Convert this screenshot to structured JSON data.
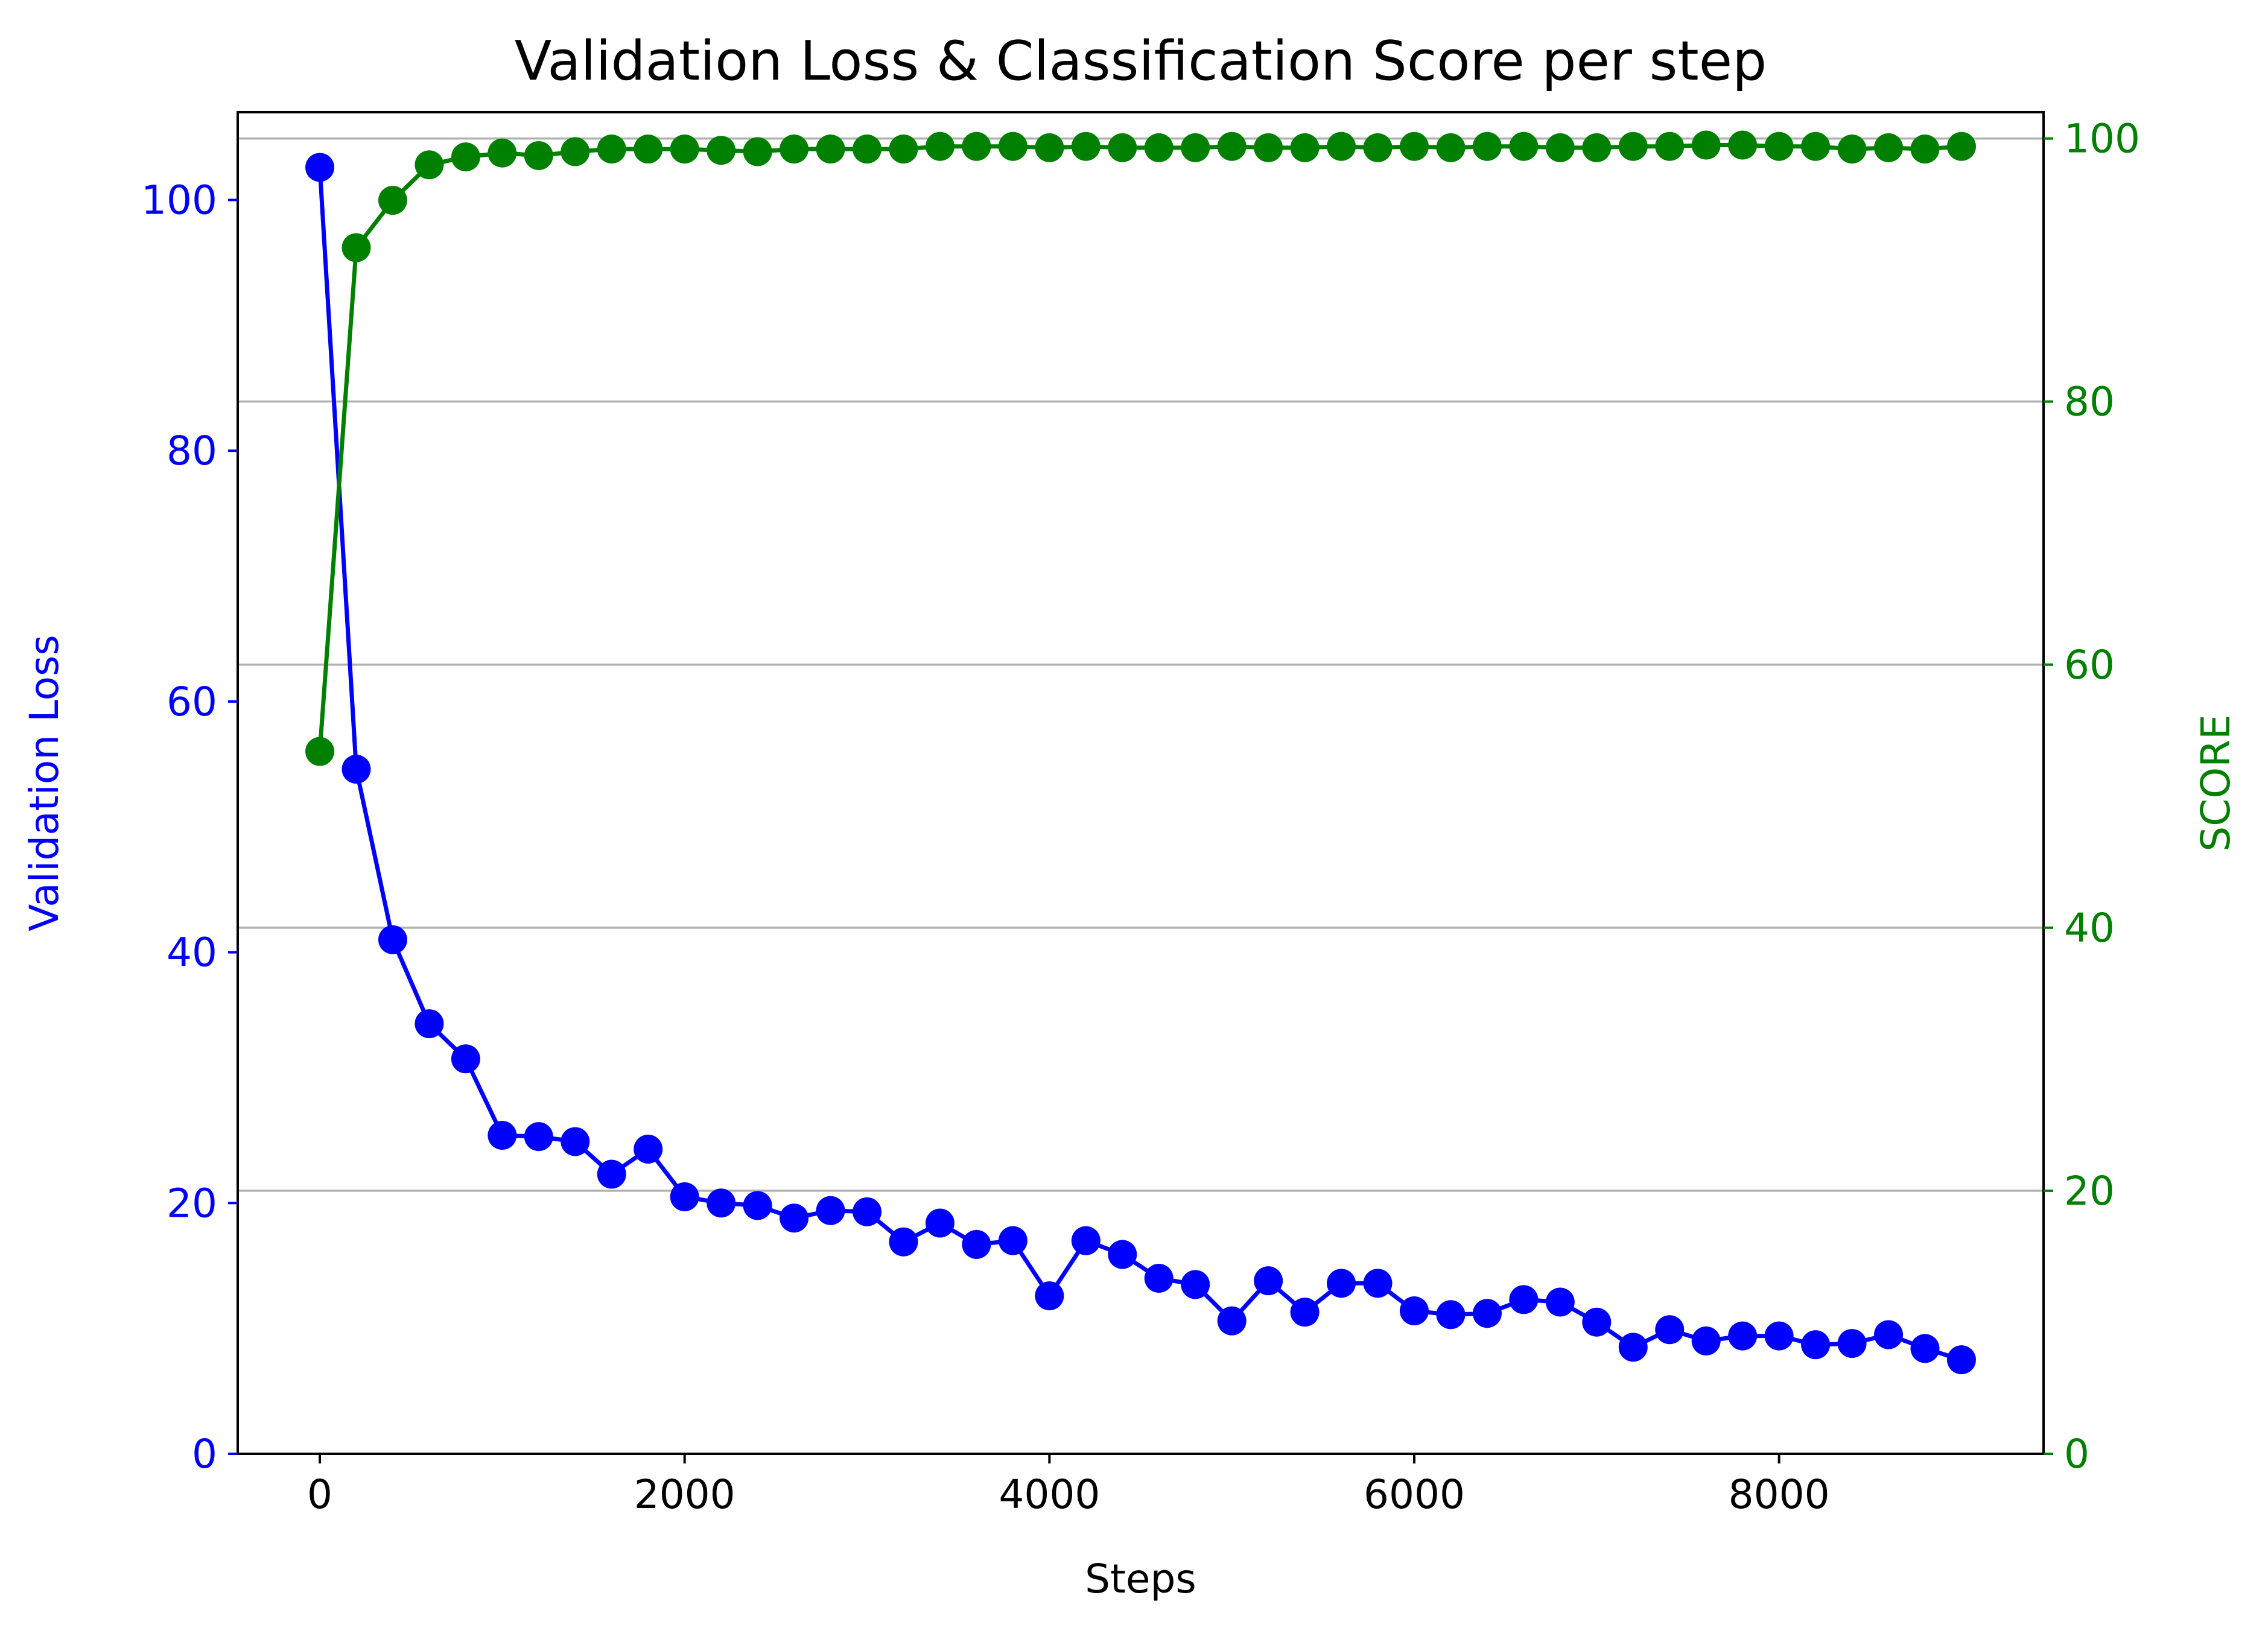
{
  "chart_data": {
    "type": "line",
    "title": "Validation Loss & Classification Score per step",
    "xlabel": "Steps",
    "ylabel_left": "Validation Loss",
    "ylabel_right": "SCORE",
    "xlim": [
      -450,
      9450
    ],
    "ylim_left": [
      0,
      107
    ],
    "ylim_right": [
      0,
      102
    ],
    "x_ticks": [
      0,
      2000,
      4000,
      6000,
      8000
    ],
    "y_ticks_left": [
      0,
      20,
      40,
      60,
      80,
      100
    ],
    "y_ticks_right": [
      0,
      20,
      40,
      60,
      80,
      100
    ],
    "grid": "horizontal (right axis)",
    "x": [
      0,
      200,
      400,
      600,
      800,
      1000,
      1200,
      1400,
      1600,
      1800,
      2000,
      2200,
      2400,
      2600,
      2800,
      3000,
      3200,
      3400,
      3600,
      3800,
      4000,
      4200,
      4400,
      4600,
      4800,
      5000,
      5200,
      5400,
      5600,
      5800,
      6000,
      6200,
      6400,
      6600,
      6800,
      7000,
      7200,
      7400,
      7600,
      7800,
      8000,
      8200,
      8400,
      8600,
      8800,
      9000
    ],
    "series": [
      {
        "name": "Validation Loss",
        "axis": "left",
        "color": "#0000ff",
        "values": [
          102.6,
          54.6,
          41.0,
          34.3,
          31.5,
          25.4,
          25.3,
          24.9,
          22.3,
          24.3,
          20.5,
          20.0,
          19.8,
          18.8,
          19.4,
          19.3,
          16.9,
          18.4,
          16.7,
          17.0,
          12.6,
          17.0,
          15.9,
          14.0,
          13.5,
          10.6,
          13.8,
          11.3,
          13.6,
          13.6,
          11.4,
          11.1,
          11.2,
          12.3,
          12.1,
          10.5,
          8.5,
          9.9,
          9.0,
          9.4,
          9.4,
          8.7,
          8.8,
          9.5,
          8.4,
          7.5
        ]
      },
      {
        "name": "SCORE",
        "axis": "right",
        "color": "#008000",
        "values": [
          53.4,
          91.7,
          95.3,
          98.0,
          98.6,
          98.9,
          98.7,
          99.0,
          99.2,
          99.2,
          99.2,
          99.1,
          99.0,
          99.2,
          99.2,
          99.2,
          99.2,
          99.4,
          99.4,
          99.4,
          99.3,
          99.4,
          99.3,
          99.3,
          99.3,
          99.4,
          99.3,
          99.3,
          99.4,
          99.3,
          99.4,
          99.3,
          99.4,
          99.4,
          99.3,
          99.3,
          99.4,
          99.4,
          99.5,
          99.5,
          99.4,
          99.4,
          99.2,
          99.3,
          99.2,
          99.4
        ]
      }
    ]
  }
}
